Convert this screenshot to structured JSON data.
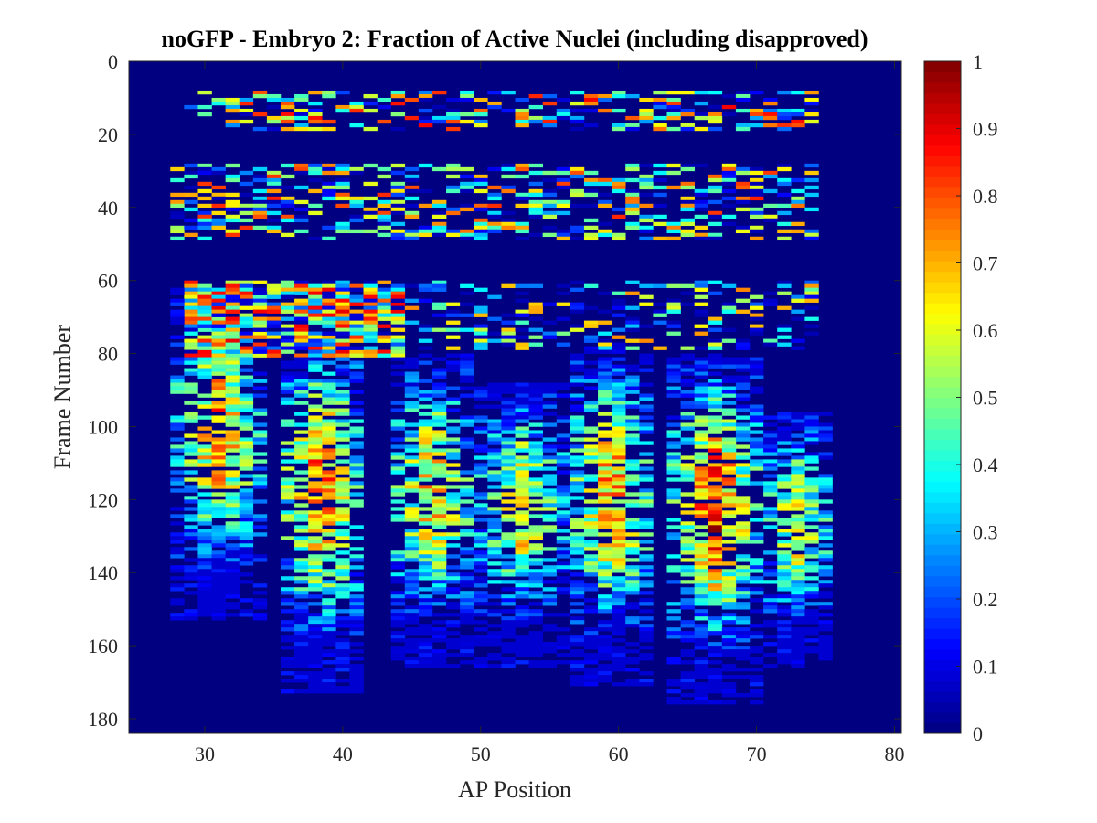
{
  "chart_data": {
    "type": "heatmap",
    "title": "noGFP - Embryo 2: Fraction of Active Nuclei (including disapproved)",
    "xlabel": "AP Position",
    "ylabel": "Frame Number",
    "xlim": [
      24.5,
      80.5
    ],
    "ylim": [
      0,
      184
    ],
    "y_reversed": true,
    "x_ticks": [
      "30",
      "40",
      "50",
      "60",
      "70",
      "80"
    ],
    "y_ticks": [
      "0",
      "20",
      "40",
      "60",
      "80",
      "100",
      "120",
      "140",
      "160",
      "180"
    ],
    "colorbar": {
      "colormap": "jet",
      "range": [
        0,
        1
      ],
      "ticks": [
        "0",
        "0.1",
        "0.2",
        "0.3",
        "0.4",
        "0.5",
        "0.6",
        "0.7",
        "0.8",
        "0.9",
        "1"
      ]
    },
    "background_value": 0,
    "bands": [
      {
        "frames": [
          8,
          18
        ],
        "ap": [
          29,
          74
        ],
        "density": 0.45,
        "mean": 0.45
      },
      {
        "frames": [
          28,
          48
        ],
        "ap": [
          28,
          74
        ],
        "density": 0.45,
        "mean": 0.4
      },
      {
        "frames": [
          60,
          80
        ],
        "ap": [
          29,
          44
        ],
        "density": 0.85,
        "mean": 0.45
      },
      {
        "frames": [
          60,
          78
        ],
        "ap": [
          44,
          74
        ],
        "density": 0.35,
        "mean": 0.3
      }
    ],
    "stripes": [
      {
        "ap_center": 31,
        "half_width": 2,
        "frames": [
          62,
          152
        ],
        "peak": 0.75
      },
      {
        "ap_center": 38.5,
        "half_width": 2,
        "frames": [
          74,
          172
        ],
        "peak": 0.8
      },
      {
        "ap_center": 46.5,
        "half_width": 2,
        "frames": [
          80,
          165
        ],
        "peak": 0.7
      },
      {
        "ap_center": 53,
        "half_width": 2,
        "frames": [
          88,
          165
        ],
        "peak": 0.65
      },
      {
        "ap_center": 59.5,
        "half_width": 2,
        "frames": [
          78,
          170
        ],
        "peak": 0.75
      },
      {
        "ap_center": 67,
        "half_width": 2,
        "frames": [
          80,
          175
        ],
        "peak": 0.85
      },
      {
        "ap_center": 73,
        "half_width": 1.5,
        "frames": [
          96,
          165
        ],
        "peak": 0.6
      }
    ]
  }
}
